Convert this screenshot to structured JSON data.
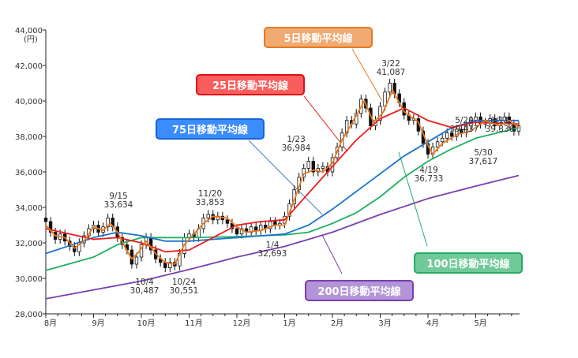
{
  "chart_data": {
    "type": "line",
    "title": "",
    "ylabel": "(円)",
    "ylim": [
      28000,
      44000
    ],
    "yticks": [
      "28,000",
      "30,000",
      "32,000",
      "34,000",
      "36,000",
      "38,000",
      "40,000",
      "42,000",
      "44,000"
    ],
    "xticks": [
      "8月",
      "9月",
      "10月",
      "11月",
      "12月",
      "1月",
      "2月",
      "3月",
      "4月",
      "5月"
    ],
    "x_unit": "months since Aug 1",
    "grid": false,
    "series": [
      {
        "name": "5日移動平均線",
        "color": "#e8781e",
        "points": [
          [
            0,
            33.0
          ],
          [
            0.2,
            32.4
          ],
          [
            0.4,
            32.3
          ],
          [
            0.6,
            31.7
          ],
          [
            0.8,
            32.1
          ],
          [
            1.0,
            32.9
          ],
          [
            1.2,
            32.7
          ],
          [
            1.35,
            33.1
          ],
          [
            1.5,
            32.6
          ],
          [
            1.65,
            31.8
          ],
          [
            1.8,
            31.1
          ],
          [
            1.95,
            31.5
          ],
          [
            2.1,
            32.1
          ],
          [
            2.3,
            31.4
          ],
          [
            2.5,
            30.9
          ],
          [
            2.7,
            30.8
          ],
          [
            2.9,
            31.9
          ],
          [
            3.1,
            32.5
          ],
          [
            3.3,
            33.1
          ],
          [
            3.5,
            33.5
          ],
          [
            3.8,
            33.4
          ],
          [
            4.0,
            32.9
          ],
          [
            4.2,
            32.6
          ],
          [
            4.5,
            32.7
          ],
          [
            4.8,
            33.0
          ],
          [
            5.0,
            33.0
          ],
          [
            5.2,
            34.4
          ],
          [
            5.4,
            35.9
          ],
          [
            5.6,
            36.1
          ],
          [
            5.8,
            36.0
          ],
          [
            6.0,
            36.5
          ],
          [
            6.2,
            37.8
          ],
          [
            6.4,
            38.7
          ],
          [
            6.67,
            40.0
          ],
          [
            6.86,
            38.8
          ],
          [
            7.05,
            39.3
          ],
          [
            7.26,
            40.6
          ],
          [
            7.5,
            39.4
          ],
          [
            7.8,
            38.8
          ],
          [
            8.0,
            37.5
          ],
          [
            8.1,
            37.0
          ],
          [
            8.3,
            37.6
          ],
          [
            8.6,
            38.1
          ],
          [
            8.9,
            38.3
          ],
          [
            9.2,
            38.9
          ],
          [
            9.5,
            38.6
          ],
          [
            9.7,
            38.9
          ],
          [
            9.9,
            38.5
          ]
        ]
      },
      {
        "name": "25日移動平均線",
        "color": "#ee1c1c",
        "points": [
          [
            0,
            32.8
          ],
          [
            0.5,
            32.5
          ],
          [
            1,
            32.2
          ],
          [
            1.5,
            32.3
          ],
          [
            2,
            32.0
          ],
          [
            2.5,
            31.5
          ],
          [
            3,
            31.6
          ],
          [
            3.5,
            32.3
          ],
          [
            4,
            33.0
          ],
          [
            4.5,
            33.2
          ],
          [
            5,
            33.3
          ],
          [
            5.5,
            34.8
          ],
          [
            6,
            36.3
          ],
          [
            6.5,
            37.8
          ],
          [
            7,
            39.0
          ],
          [
            7.5,
            39.6
          ],
          [
            8,
            38.9
          ],
          [
            8.5,
            38.5
          ],
          [
            9,
            38.8
          ],
          [
            9.9,
            38.7
          ]
        ]
      },
      {
        "name": "75日移動平均線",
        "color": "#1a73d0",
        "points": [
          [
            0,
            31.4
          ],
          [
            1,
            32.3
          ],
          [
            1.5,
            32.6
          ],
          [
            2,
            32.4
          ],
          [
            2.5,
            32.1
          ],
          [
            3,
            32.1
          ],
          [
            3.5,
            32.2
          ],
          [
            4,
            32.3
          ],
          [
            4.5,
            32.4
          ],
          [
            5,
            32.5
          ],
          [
            5.5,
            33.0
          ],
          [
            6,
            33.9
          ],
          [
            6.5,
            34.9
          ],
          [
            7,
            35.9
          ],
          [
            7.5,
            36.9
          ],
          [
            8,
            37.7
          ],
          [
            8.5,
            38.5
          ],
          [
            9,
            38.9
          ],
          [
            9.9,
            38.9
          ]
        ]
      },
      {
        "name": "100日移動平均線",
        "color": "#1cb060",
        "points": [
          [
            0,
            30.45
          ],
          [
            1,
            31.2
          ],
          [
            1.5,
            31.9
          ],
          [
            2,
            32.3
          ],
          [
            3,
            32.3
          ],
          [
            4,
            32.35
          ],
          [
            5,
            32.45
          ],
          [
            5.5,
            32.6
          ],
          [
            6,
            33.1
          ],
          [
            6.5,
            33.7
          ],
          [
            7,
            34.6
          ],
          [
            7.5,
            35.7
          ],
          [
            8,
            36.6
          ],
          [
            8.5,
            37.3
          ],
          [
            9,
            37.9
          ],
          [
            9.9,
            38.5
          ]
        ]
      },
      {
        "name": "200日移動平均線",
        "color": "#7a3fb0",
        "points": [
          [
            0,
            28.85
          ],
          [
            1,
            29.35
          ],
          [
            2,
            29.85
          ],
          [
            3,
            30.5
          ],
          [
            4,
            31.2
          ],
          [
            5,
            31.8
          ],
          [
            6,
            32.6
          ],
          [
            7,
            33.6
          ],
          [
            8,
            34.5
          ],
          [
            9,
            35.2
          ],
          [
            9.9,
            35.8
          ]
        ]
      }
    ],
    "candle_close": [
      [
        0,
        33.2
      ],
      [
        0.1,
        32.6
      ],
      [
        0.2,
        32.2
      ],
      [
        0.3,
        32.5
      ],
      [
        0.4,
        32.1
      ],
      [
        0.5,
        31.8
      ],
      [
        0.6,
        31.5
      ],
      [
        0.7,
        32.0
      ],
      [
        0.8,
        32.4
      ],
      [
        0.9,
        32.8
      ],
      [
        1.0,
        33.0
      ],
      [
        1.1,
        32.6
      ],
      [
        1.2,
        32.9
      ],
      [
        1.3,
        33.4
      ],
      [
        1.4,
        32.9
      ],
      [
        1.5,
        32.3
      ],
      [
        1.6,
        31.9
      ],
      [
        1.7,
        31.6
      ],
      [
        1.8,
        30.8
      ],
      [
        1.9,
        31.2
      ],
      [
        2.0,
        31.9
      ],
      [
        2.1,
        32.3
      ],
      [
        2.2,
        31.6
      ],
      [
        2.3,
        31.1
      ],
      [
        2.4,
        30.9
      ],
      [
        2.5,
        30.6
      ],
      [
        2.6,
        30.9
      ],
      [
        2.7,
        30.7
      ],
      [
        2.8,
        31.4
      ],
      [
        2.9,
        32.3
      ],
      [
        3.0,
        32.5
      ],
      [
        3.1,
        32.3
      ],
      [
        3.2,
        32.8
      ],
      [
        3.3,
        33.4
      ],
      [
        3.4,
        33.6
      ],
      [
        3.5,
        33.3
      ],
      [
        3.6,
        33.5
      ],
      [
        3.7,
        33.3
      ],
      [
        3.8,
        33.1
      ],
      [
        3.9,
        32.8
      ],
      [
        4.0,
        32.5
      ],
      [
        4.1,
        32.8
      ],
      [
        4.2,
        32.6
      ],
      [
        4.3,
        32.9
      ],
      [
        4.4,
        32.7
      ],
      [
        4.5,
        33.0
      ],
      [
        4.6,
        32.8
      ],
      [
        4.7,
        33.2
      ],
      [
        4.8,
        33.0
      ],
      [
        4.9,
        33.1
      ],
      [
        5.0,
        33.5
      ],
      [
        5.1,
        34.2
      ],
      [
        5.2,
        35.0
      ],
      [
        5.3,
        35.7
      ],
      [
        5.4,
        36.2
      ],
      [
        5.5,
        36.6
      ],
      [
        5.6,
        36.0
      ],
      [
        5.7,
        36.2
      ],
      [
        5.8,
        36.3
      ],
      [
        5.9,
        36.0
      ],
      [
        6.0,
        36.8
      ],
      [
        6.1,
        37.4
      ],
      [
        6.2,
        38.2
      ],
      [
        6.3,
        38.9
      ],
      [
        6.4,
        38.7
      ],
      [
        6.5,
        39.3
      ],
      [
        6.6,
        40.1
      ],
      [
        6.7,
        39.6
      ],
      [
        6.8,
        38.6
      ],
      [
        6.9,
        38.9
      ],
      [
        7.0,
        39.7
      ],
      [
        7.1,
        40.5
      ],
      [
        7.2,
        41.0
      ],
      [
        7.3,
        40.4
      ],
      [
        7.4,
        39.9
      ],
      [
        7.5,
        39.2
      ],
      [
        7.6,
        38.9
      ],
      [
        7.7,
        39.0
      ],
      [
        7.8,
        38.3
      ],
      [
        7.9,
        37.6
      ],
      [
        8.0,
        37.0
      ],
      [
        8.1,
        37.4
      ],
      [
        8.2,
        37.7
      ],
      [
        8.3,
        37.9
      ],
      [
        8.4,
        38.2
      ],
      [
        8.5,
        38.0
      ],
      [
        8.6,
        38.4
      ],
      [
        8.7,
        38.2
      ],
      [
        8.8,
        38.6
      ],
      [
        8.9,
        38.9
      ],
      [
        9.0,
        39.1
      ],
      [
        9.1,
        38.7
      ],
      [
        9.2,
        38.8
      ],
      [
        9.3,
        39.0
      ],
      [
        9.4,
        38.6
      ],
      [
        9.5,
        38.9
      ],
      [
        9.6,
        39.1
      ],
      [
        9.7,
        38.7
      ],
      [
        9.8,
        38.3
      ],
      [
        9.9,
        38.6
      ]
    ],
    "annotations": [
      {
        "date": "9/15",
        "value": "33,634"
      },
      {
        "date": "10/4",
        "value": "30,487"
      },
      {
        "date": "10/24",
        "value": "30,551"
      },
      {
        "date": "11/20",
        "value": "33,853"
      },
      {
        "date": "1/4",
        "value": "32,693"
      },
      {
        "date": "1/23",
        "value": "36,984"
      },
      {
        "date": "3/22",
        "value": "41,087"
      },
      {
        "date": "4/19",
        "value": "36,733"
      },
      {
        "date": "5/20",
        "value": "39,437"
      },
      {
        "date": "5/30",
        "value": "37,617"
      },
      {
        "date": "6/11",
        "value": "39,336"
      }
    ],
    "legend": {
      "ma5": "5日移動平均線",
      "ma25": "25日移動平均線",
      "ma75": "75日移動平均線",
      "ma100": "100日移動平均線",
      "ma200": "200日移動平均線"
    }
  }
}
